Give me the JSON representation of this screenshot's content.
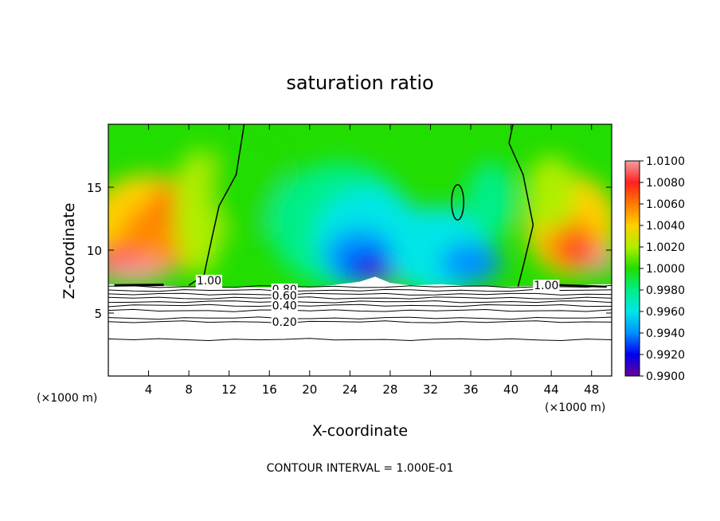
{
  "chart_data": {
    "type": "heatmap",
    "title": "saturation ratio",
    "xlabel": "X-coordinate",
    "ylabel": "Z-coordinate",
    "x_unit_left": "(×1000 m)",
    "x_unit_right": "(×1000 m)",
    "footer": "CONTOUR INTERVAL = 1.000E-01",
    "xlim": [
      0,
      50
    ],
    "ylim": [
      0,
      20
    ],
    "x_ticks": [
      "4",
      "8",
      "12",
      "16",
      "20",
      "24",
      "28",
      "32",
      "36",
      "40",
      "44",
      "48"
    ],
    "x_tick_values": [
      4,
      8,
      12,
      16,
      20,
      24,
      28,
      32,
      36,
      40,
      44,
      48
    ],
    "y_ticks": [
      "5",
      "10",
      "15"
    ],
    "y_tick_values": [
      5,
      10,
      15
    ],
    "colorbar": {
      "labels": [
        "1.0100",
        "1.0080",
        "1.0060",
        "1.0040",
        "1.0020",
        "1.0000",
        "0.9980",
        "0.9960",
        "0.9940",
        "0.9920",
        "0.9900"
      ],
      "values": [
        1.01,
        1.008,
        1.006,
        1.004,
        1.002,
        1.0,
        0.998,
        0.996,
        0.994,
        0.992,
        0.99
      ],
      "colors": [
        "#f08080",
        "#ff1a1a",
        "#ff7f00",
        "#ffd700",
        "#aaee00",
        "#22dd00",
        "#00ee88",
        "#00eeee",
        "#0099ff",
        "#0000ff",
        "#7700aa"
      ]
    },
    "contour_labels": [
      {
        "text": "1.00",
        "x": 10.0,
        "y": 7.6
      },
      {
        "text": "1.00",
        "x": 43.5,
        "y": 7.2
      },
      {
        "text": "0.80",
        "x": 17.5,
        "y": 6.9
      },
      {
        "text": "0.60",
        "x": 17.5,
        "y": 6.4
      },
      {
        "text": "0.40",
        "x": 17.5,
        "y": 5.6
      },
      {
        "text": "0.20",
        "x": 17.5,
        "y": 4.3
      }
    ],
    "contour_levels_below": [
      7.1,
      6.8,
      6.5,
      6.2,
      5.9,
      5.6,
      5.2,
      4.6,
      4.3,
      2.9
    ]
  }
}
